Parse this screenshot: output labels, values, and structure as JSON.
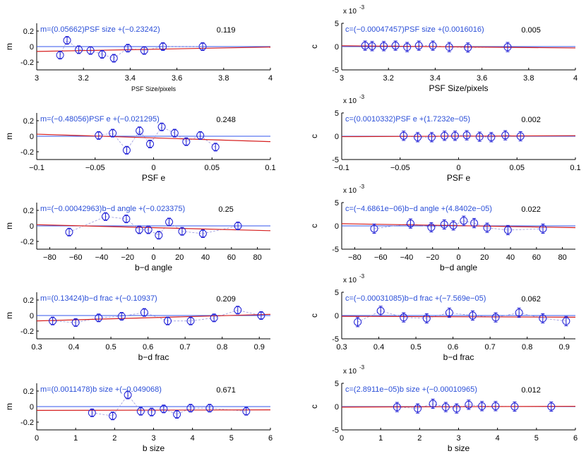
{
  "figure": {
    "name": "shear-bias-regression-panels"
  },
  "colors": {
    "axis": "#000000",
    "marker": "#1f1fd6",
    "fit": "#d61f1f",
    "zero": "#3355ee",
    "text": "#000000",
    "annotation": "#2b4fd8",
    "dashed": "#9999dd"
  },
  "chart_data": [
    {
      "type": "scatter",
      "panel": "m-psf-size",
      "ylabel": "m",
      "xlabel": "PSF Size/pixels",
      "xlim": [
        3,
        4
      ],
      "ylim": [
        -0.3,
        0.3
      ],
      "xticks": [
        3,
        3.2,
        3.4,
        3.6,
        3.8,
        4
      ],
      "xtick_labels": [
        "3",
        "3.2",
        "3.4",
        "3.6",
        "3.8",
        "4"
      ],
      "yticks": [
        -0.2,
        0,
        0.2
      ],
      "ytick_labels": [
        "-0.2",
        "0",
        "0.2"
      ],
      "equation": "m=(0.05662)PSF size +(−0.23242)",
      "stat": "0.119",
      "slope": 0.05662,
      "intercept": -0.23242,
      "x": [
        3.1,
        3.13,
        3.18,
        3.23,
        3.28,
        3.33,
        3.39,
        3.46,
        3.54,
        3.71
      ],
      "y": [
        -0.11,
        0.08,
        -0.04,
        -0.05,
        -0.1,
        -0.15,
        -0.02,
        -0.05,
        0.0,
        0.0
      ],
      "err": [
        0.05,
        0.05,
        0.05,
        0.05,
        0.05,
        0.05,
        0.05,
        0.05,
        0.05,
        0.05
      ]
    },
    {
      "type": "scatter",
      "panel": "c-psf-size",
      "ylabel": "c",
      "xlabel": "PSF Size/pixels",
      "exponent": "x 10",
      "exponent_power": "-3",
      "xlim": [
        3,
        4
      ],
      "ylim": [
        -5,
        5
      ],
      "xticks": [
        3,
        3.2,
        3.4,
        3.6,
        3.8,
        4
      ],
      "xtick_labels": [
        "3",
        "3.2",
        "3.4",
        "3.6",
        "3.8",
        "4"
      ],
      "yticks": [
        -5,
        0,
        5
      ],
      "ytick_labels": [
        "-5",
        "0",
        "5"
      ],
      "equation": "c=(−0.00047457)PSF size +(0.0016016)",
      "stat": "0.005",
      "slope": -0.47457,
      "intercept": 1.6016,
      "x": [
        3.1,
        3.13,
        3.18,
        3.23,
        3.28,
        3.33,
        3.39,
        3.46,
        3.54,
        3.71
      ],
      "y": [
        0.2,
        0.1,
        0.1,
        0.2,
        -0.1,
        0.2,
        0.2,
        -0.1,
        -0.2,
        -0.1
      ],
      "err": [
        1.0,
        1.0,
        1.0,
        1.0,
        1.0,
        1.0,
        1.0,
        1.0,
        1.0,
        1.0
      ]
    },
    {
      "type": "scatter",
      "panel": "m-psf-e",
      "ylabel": "m",
      "xlabel": "PSF e",
      "xlim": [
        -0.1,
        0.1
      ],
      "ylim": [
        -0.3,
        0.3
      ],
      "xticks": [
        -0.1,
        -0.05,
        0,
        0.05,
        0.1
      ],
      "xtick_labels": [
        "−0.1",
        "−0.05",
        "0",
        "0.05",
        "0.1"
      ],
      "yticks": [
        -0.2,
        0,
        0.2
      ],
      "ytick_labels": [
        "-0.2",
        "0",
        "0.2"
      ],
      "equation": "m=(−0.48056)PSF e +(−0.021295)",
      "stat": "0.248",
      "slope": -0.48056,
      "intercept": -0.021295,
      "x": [
        -0.047,
        -0.035,
        -0.023,
        -0.012,
        -0.003,
        0.007,
        0.018,
        0.028,
        0.04,
        0.053
      ],
      "y": [
        0.01,
        0.04,
        -0.18,
        0.07,
        -0.1,
        0.12,
        0.04,
        -0.07,
        0.01,
        -0.14
      ],
      "err": [
        0.05,
        0.05,
        0.05,
        0.05,
        0.05,
        0.05,
        0.05,
        0.05,
        0.05,
        0.05
      ]
    },
    {
      "type": "scatter",
      "panel": "c-psf-e",
      "ylabel": "c",
      "xlabel": "PSF e",
      "exponent": "x 10",
      "exponent_power": "-3",
      "xlim": [
        -0.1,
        0.1
      ],
      "ylim": [
        -5,
        5
      ],
      "xticks": [
        -0.1,
        -0.05,
        0,
        0.05,
        0.1
      ],
      "xtick_labels": [
        "−0.1",
        "−0.05",
        "0",
        "0.05",
        "0.1"
      ],
      "yticks": [
        -5,
        0,
        5
      ],
      "ytick_labels": [
        "-5",
        "0",
        "5"
      ],
      "equation": "c=(0.0010332)PSF e +(1.7232e−05)",
      "stat": "0.002",
      "slope": 1.0332,
      "intercept": 0.017232,
      "x": [
        -0.047,
        -0.035,
        -0.023,
        -0.012,
        -0.003,
        0.007,
        0.018,
        0.028,
        0.04,
        0.053
      ],
      "y": [
        0.1,
        -0.2,
        -0.2,
        0.1,
        0.1,
        0.2,
        -0.1,
        -0.2,
        0.2,
        0.0
      ],
      "err": [
        1.0,
        1.0,
        1.0,
        1.0,
        1.0,
        1.0,
        1.0,
        1.0,
        1.0,
        1.0
      ]
    },
    {
      "type": "scatter",
      "panel": "m-bd-angle",
      "ylabel": "m",
      "xlabel": "b−d angle",
      "xlim": [
        -90,
        90
      ],
      "ylim": [
        -0.3,
        0.3
      ],
      "xticks": [
        -80,
        -60,
        -40,
        -20,
        0,
        20,
        40,
        60,
        80
      ],
      "xtick_labels": [
        "−80",
        "−60",
        "−40",
        "−20",
        "0",
        "20",
        "40",
        "60",
        "80"
      ],
      "yticks": [
        -0.2,
        0,
        0.2
      ],
      "ytick_labels": [
        "-0.2",
        "0",
        "0.2"
      ],
      "equation": "m=(−0.00042963)b−d angle +(−0.023375)",
      "stat": "0.25",
      "slope": -0.00042963,
      "intercept": -0.023375,
      "x": [
        -65,
        -37,
        -21,
        -11,
        -4,
        4,
        12,
        22,
        38,
        65
      ],
      "y": [
        -0.08,
        0.12,
        0.09,
        -0.05,
        -0.05,
        -0.12,
        0.05,
        -0.07,
        -0.1,
        0.0
      ],
      "err": [
        0.05,
        0.05,
        0.05,
        0.05,
        0.05,
        0.05,
        0.05,
        0.05,
        0.05,
        0.05
      ]
    },
    {
      "type": "scatter",
      "panel": "c-bd-angle",
      "ylabel": "c",
      "xlabel": "b−d angle",
      "exponent": "x 10",
      "exponent_power": "-3",
      "xlim": [
        -90,
        90
      ],
      "ylim": [
        -5,
        5
      ],
      "xticks": [
        -80,
        -60,
        -40,
        -20,
        0,
        20,
        40,
        60,
        80
      ],
      "xtick_labels": [
        "−80",
        "−60",
        "−40",
        "−20",
        "0",
        "20",
        "40",
        "60",
        "80"
      ],
      "yticks": [
        -5,
        0,
        5
      ],
      "ytick_labels": [
        "-5",
        "0",
        "5"
      ],
      "equation": "c=(−4.6861e−06)b−d angle +(4.8402e−05)",
      "stat": "0.022",
      "slope": -0.0046861,
      "intercept": 0.048402,
      "x": [
        -65,
        -37,
        -21,
        -11,
        -4,
        4,
        12,
        22,
        38,
        65
      ],
      "y": [
        -0.6,
        0.5,
        -0.3,
        0.3,
        0.1,
        1.1,
        0.6,
        -0.4,
        -0.9,
        -0.6
      ],
      "err": [
        1.0,
        1.0,
        1.0,
        1.0,
        1.0,
        1.0,
        1.0,
        1.0,
        1.0,
        1.0
      ]
    },
    {
      "type": "scatter",
      "panel": "m-bd-frac",
      "ylabel": "m",
      "xlabel": "b−d frac",
      "xlim": [
        0.3,
        0.93
      ],
      "ylim": [
        -0.3,
        0.3
      ],
      "xticks": [
        0.3,
        0.4,
        0.5,
        0.6,
        0.7,
        0.8,
        0.9
      ],
      "xtick_labels": [
        "0.3",
        "0.4",
        "0.5",
        "0.6",
        "0.7",
        "0.8",
        "0.9"
      ],
      "yticks": [
        -0.2,
        0,
        0.2
      ],
      "ytick_labels": [
        "-0.2",
        "0",
        "0.2"
      ],
      "equation": "m=(0.13424)b−d frac +(−0.10937)",
      "stat": "0.209",
      "slope": 0.13424,
      "intercept": -0.10937,
      "x": [
        0.343,
        0.405,
        0.467,
        0.529,
        0.59,
        0.653,
        0.715,
        0.778,
        0.842,
        0.905
      ],
      "y": [
        -0.07,
        -0.09,
        -0.03,
        -0.01,
        0.04,
        -0.07,
        -0.07,
        -0.03,
        0.07,
        0.0
      ],
      "err": [
        0.05,
        0.05,
        0.05,
        0.05,
        0.05,
        0.05,
        0.05,
        0.05,
        0.05,
        0.05
      ]
    },
    {
      "type": "scatter",
      "panel": "c-bd-frac",
      "ylabel": "c",
      "xlabel": "b−d frac",
      "exponent": "x 10",
      "exponent_power": "-3",
      "xlim": [
        0.3,
        0.93
      ],
      "ylim": [
        -5,
        5
      ],
      "xticks": [
        0.3,
        0.4,
        0.5,
        0.6,
        0.7,
        0.8,
        0.9
      ],
      "xtick_labels": [
        "0.3",
        "0.4",
        "0.5",
        "0.6",
        "0.7",
        "0.8",
        "0.9"
      ],
      "yticks": [
        -5,
        0,
        5
      ],
      "ytick_labels": [
        "-5",
        "0",
        "5"
      ],
      "equation": "c=(−0.00031085)b−d frac +(−7.569e−05)",
      "stat": "0.062",
      "slope": -0.31085,
      "intercept": -0.07569,
      "x": [
        0.343,
        0.405,
        0.467,
        0.529,
        0.59,
        0.653,
        0.715,
        0.778,
        0.842,
        0.905
      ],
      "y": [
        -1.4,
        1.0,
        -0.4,
        -0.6,
        0.6,
        0.0,
        -0.4,
        0.6,
        -0.6,
        -1.2
      ],
      "err": [
        1.0,
        1.0,
        1.0,
        1.0,
        1.0,
        1.0,
        1.0,
        1.0,
        1.0,
        1.0
      ]
    },
    {
      "type": "scatter",
      "panel": "m-b-size",
      "ylabel": "m",
      "xlabel": "b size",
      "xlim": [
        0,
        6
      ],
      "ylim": [
        -0.3,
        0.3
      ],
      "xticks": [
        0,
        1,
        2,
        3,
        4,
        5,
        6
      ],
      "xtick_labels": [
        "0",
        "1",
        "2",
        "3",
        "4",
        "5",
        "6"
      ],
      "yticks": [
        -0.2,
        0,
        0.2
      ],
      "ytick_labels": [
        "-0.2",
        "0",
        "0.2"
      ],
      "equation": "m=(0.0011478)b size +(−0.049068)",
      "stat": "0.671",
      "slope": 0.0011478,
      "intercept": -0.049068,
      "x": [
        1.42,
        1.95,
        2.34,
        2.67,
        2.95,
        3.26,
        3.6,
        3.95,
        4.44,
        5.38
      ],
      "y": [
        -0.08,
        -0.12,
        0.15,
        -0.06,
        -0.07,
        -0.03,
        -0.1,
        -0.02,
        -0.02,
        -0.06
      ],
      "err": [
        0.05,
        0.05,
        0.05,
        0.05,
        0.05,
        0.05,
        0.05,
        0.05,
        0.05,
        0.05
      ]
    },
    {
      "type": "scatter",
      "panel": "c-b-size",
      "ylabel": "c",
      "xlabel": "b size",
      "exponent": "x 10",
      "exponent_power": "-3",
      "xlim": [
        0,
        6
      ],
      "ylim": [
        -5,
        5
      ],
      "xticks": [
        0,
        1,
        2,
        3,
        4,
        5,
        6
      ],
      "xtick_labels": [
        "0",
        "1",
        "2",
        "3",
        "4",
        "5",
        "6"
      ],
      "yticks": [
        -5,
        0,
        5
      ],
      "ytick_labels": [
        "-5",
        "0",
        "5"
      ],
      "equation": "c=(2.8911e−05)b size +(−0.00010965)",
      "stat": "0.012",
      "slope": 0.028911,
      "intercept": -0.10965,
      "x": [
        1.42,
        1.95,
        2.34,
        2.67,
        2.95,
        3.26,
        3.6,
        3.95,
        4.44,
        5.38
      ],
      "y": [
        -0.1,
        -0.4,
        0.6,
        -0.1,
        -0.4,
        0.4,
        0.1,
        0.1,
        0.0,
        0.0
      ],
      "err": [
        1.0,
        1.0,
        1.0,
        1.0,
        1.0,
        1.0,
        1.0,
        1.0,
        1.0,
        1.0
      ]
    }
  ]
}
